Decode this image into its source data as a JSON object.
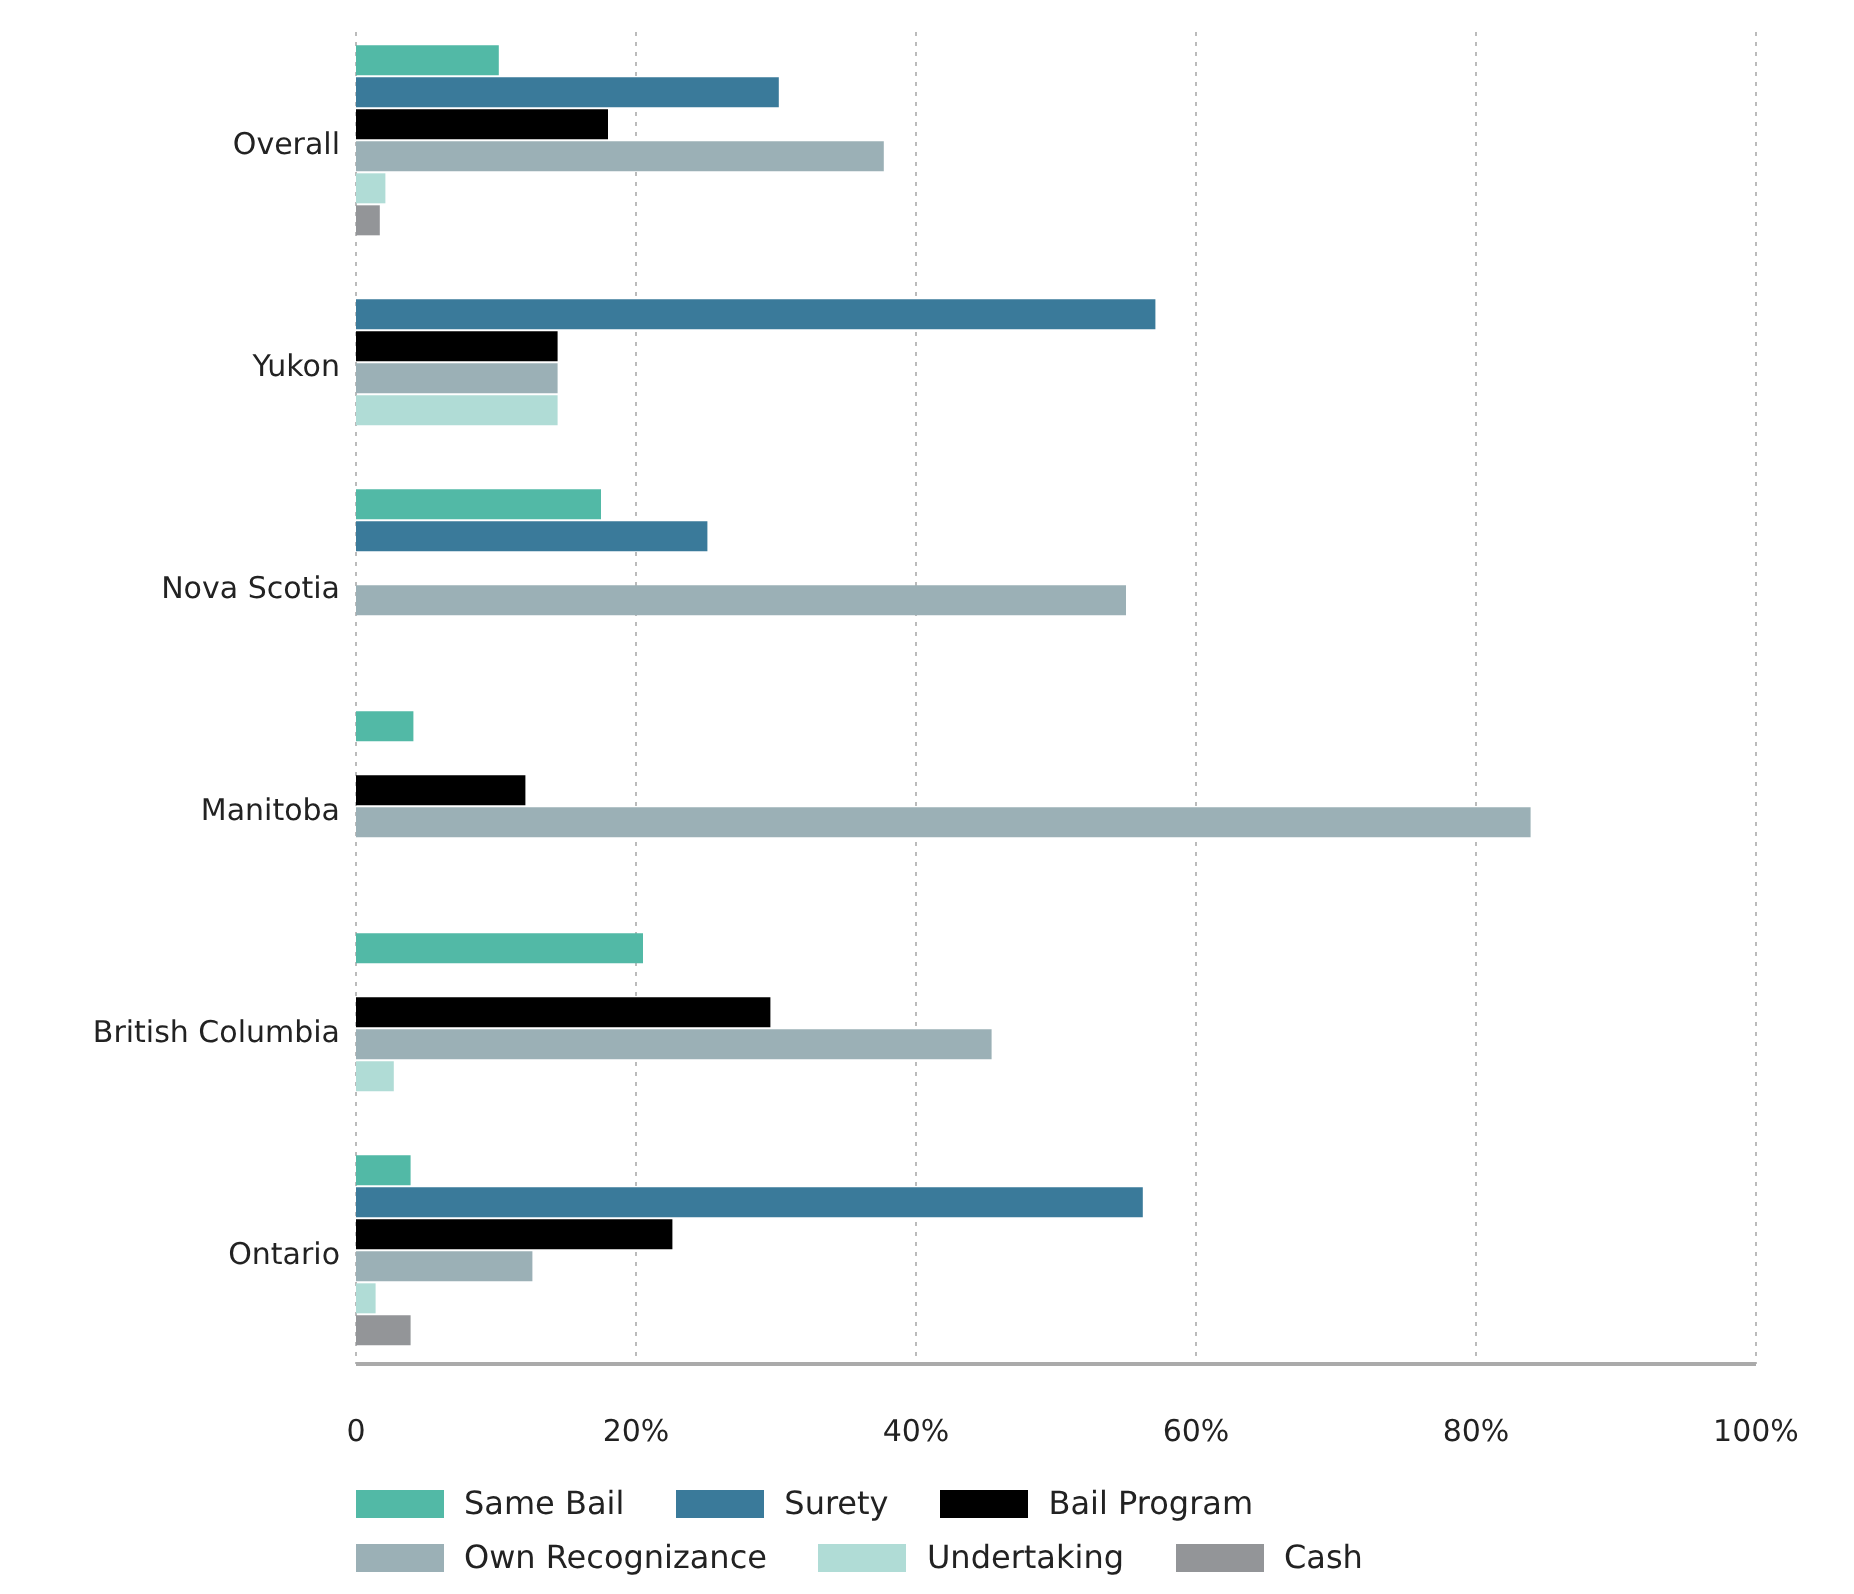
{
  "chart_data": {
    "type": "bar",
    "orientation": "horizontal",
    "categories": [
      "Overall",
      "Yukon",
      "Nova Scotia",
      "Manitoba",
      "British Columbia",
      "Ontario"
    ],
    "series": [
      {
        "name": "Same Bail",
        "color": "#52b9a6",
        "values": [
          10.2,
          null,
          17.5,
          4.1,
          20.5,
          3.9
        ]
      },
      {
        "name": "Surety",
        "color": "#3a7a9a",
        "values": [
          30.2,
          57.1,
          25.1,
          null,
          null,
          56.2
        ]
      },
      {
        "name": "Bail Program",
        "color": "#000000",
        "values": [
          18,
          14.4,
          null,
          12.1,
          29.6,
          22.6
        ]
      },
      {
        "name": "Own Recognizance",
        "color": "#9bb0b6",
        "values": [
          37.7,
          14.4,
          55,
          83.9,
          45.4,
          12.6
        ]
      },
      {
        "name": "Undertaking",
        "color": "#b0dcd6",
        "values": [
          2.1,
          14.4,
          null,
          null,
          2.7,
          1.4
        ]
      },
      {
        "name": "Cash",
        "color": "#939598",
        "values": [
          1.7,
          null,
          null,
          null,
          null,
          3.9
        ]
      }
    ],
    "xlim": [
      0,
      100
    ],
    "xticks": [
      {
        "value": 0,
        "label": "0"
      },
      {
        "value": 20,
        "label": "20%"
      },
      {
        "value": 40,
        "label": "40%"
      },
      {
        "value": 60,
        "label": "60%"
      },
      {
        "value": 80,
        "label": "80%"
      },
      {
        "value": 100,
        "label": "100%"
      }
    ],
    "grid": "x",
    "legend": "bottom"
  }
}
